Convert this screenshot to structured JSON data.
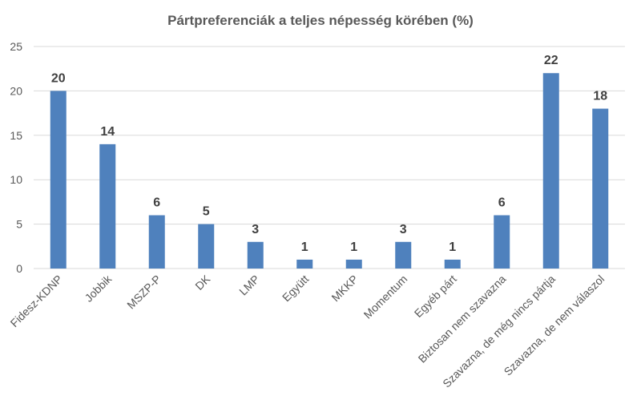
{
  "chart_data": {
    "type": "bar",
    "title": "Pártpreferenciák a teljes népesség körében (%)",
    "xlabel": "",
    "ylabel": "",
    "categories": [
      "Fidesz-KDNP",
      "Jobbik",
      "MSZP-P",
      "DK",
      "LMP",
      "Együtt",
      "MKKP",
      "Momentum",
      "Egyéb párt",
      "Biztosan nem szavazna",
      "Szavazna, de még nincs pártja",
      "Szavazna, de nem válaszol"
    ],
    "values": [
      20,
      14,
      6,
      5,
      3,
      1,
      1,
      3,
      1,
      6,
      22,
      18
    ],
    "ylim": [
      0,
      25
    ],
    "yticks": [
      0,
      5,
      10,
      15,
      20,
      25
    ],
    "grid": true,
    "legend": "none",
    "bar_color": "#4f81bd",
    "data_labels": true
  }
}
